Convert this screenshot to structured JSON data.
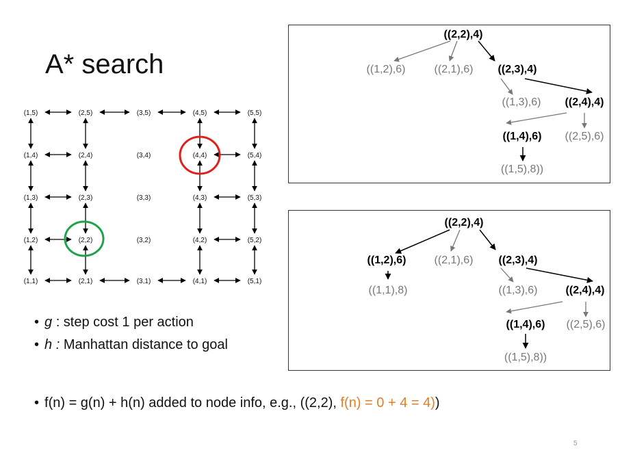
{
  "title": "A* search",
  "grid": {
    "labels": {
      "r5": [
        "(1,5)",
        "(2,5)",
        "(3,5)",
        "(4,5)",
        "(5,5)"
      ],
      "r4": [
        "(1,4)",
        "(2,4)",
        "(3,4)",
        "(4,4)",
        "(5,4)"
      ],
      "r3": [
        "(1,3)",
        "(2,3)",
        "(3,3)",
        "(4,3)",
        "(5,3)"
      ],
      "r2": [
        "(1,2)",
        "(2,2)",
        "(3,2)",
        "(4,2)",
        "(5,2)"
      ],
      "r1": [
        "(1,1)",
        "(2,1)",
        "(3,1)",
        "(4,1)",
        "(5,1)"
      ]
    },
    "start_highlight_color": "#1FA24A",
    "goal_highlight_color": "#E0201B"
  },
  "tree_top": {
    "root": "((2,2),4)",
    "n_12": "((1,2),6)",
    "n_21": "((2,1),6)",
    "n_23": "((2,3),4)",
    "n_13": "((1,3),6)",
    "n_24": "((2,4),4)",
    "n_14": "((1,4),6)",
    "n_25": "((2,5),6)",
    "n_15": "((1,5),8))"
  },
  "tree_bottom": {
    "root": "((2,2),4)",
    "n_12": "((1,2),6)",
    "n_21": "((2,1),6)",
    "n_23": "((2,3),4)",
    "n_11": "((1,1),8)",
    "n_13": "((1,3),6)",
    "n_24": "((2,4),4)",
    "n_14": "((1,4),6)",
    "n_25": "((2,5),6)",
    "n_15": "((1,5),8))"
  },
  "bullets": {
    "g_symbol": "g",
    "g_text": " : step cost 1 per action",
    "h_symbol": "h :",
    "h_text": " Manhattan distance to goal"
  },
  "formula": {
    "prefix": "f(n) = g(n) + h(n) added to node info, e.g., ((2,2), ",
    "highlight": "f(n) = 0 + 4 = 4)",
    "suffix": ")"
  },
  "page_number": "5"
}
